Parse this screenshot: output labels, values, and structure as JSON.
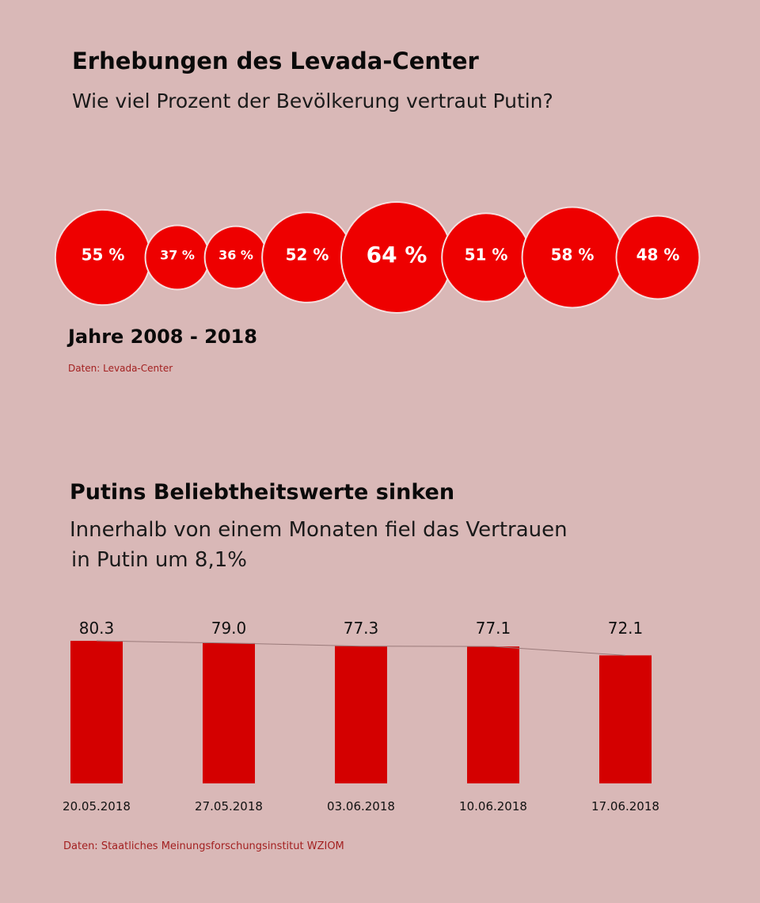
{
  "section1": {
    "title": "Erhebungen des Levada-Center",
    "subtitle": "Wie viel Prozent der Bevölkerung vertraut Putin?",
    "range_label": "Jahre 2008 - 2018",
    "source": "Daten: Levada-Center"
  },
  "section2": {
    "title": "Putins Beliebtheitswerte sinken",
    "subtitle_line1": "Innerhalb von einem Monaten fiel das Vertrauen",
    "subtitle_line2": "in Putin um 8,1%",
    "source": "Daten: Staatliches Meinungsforschungsinstitut WZIOM"
  },
  "colors": {
    "bubble_fill": "#ee0000",
    "bubble_stroke": "#f4dede",
    "bar_fill": "#d40000",
    "line": "#9a7a7a",
    "background": "#d9b8b7"
  },
  "chart_data": [
    {
      "type": "bubble",
      "title": "Wie viel Prozent der Bevölkerung vertraut Putin?",
      "x_range_label": "Jahre 2008 - 2018",
      "values": [
        55,
        37,
        36,
        52,
        64,
        51,
        58,
        48
      ],
      "labels": [
        "55 %",
        "37 %",
        "36 %",
        "52 %",
        "64 %",
        "51 %",
        "58 %",
        "48 %"
      ],
      "unit": "%"
    },
    {
      "type": "bar",
      "title": "Putins Beliebtheitswerte sinken",
      "categories": [
        "20.05.2018",
        "27.05.2018",
        "03.06.2018",
        "10.06.2018",
        "17.06.2018"
      ],
      "values": [
        80.3,
        79.0,
        77.3,
        77.1,
        72.1
      ],
      "value_labels": [
        "80.3",
        "79.0",
        "77.3",
        "77.1",
        "72.1"
      ],
      "trend_line": true,
      "xlabel": "",
      "ylabel": "",
      "ylim": [
        0,
        80.3
      ],
      "grid": false
    }
  ]
}
